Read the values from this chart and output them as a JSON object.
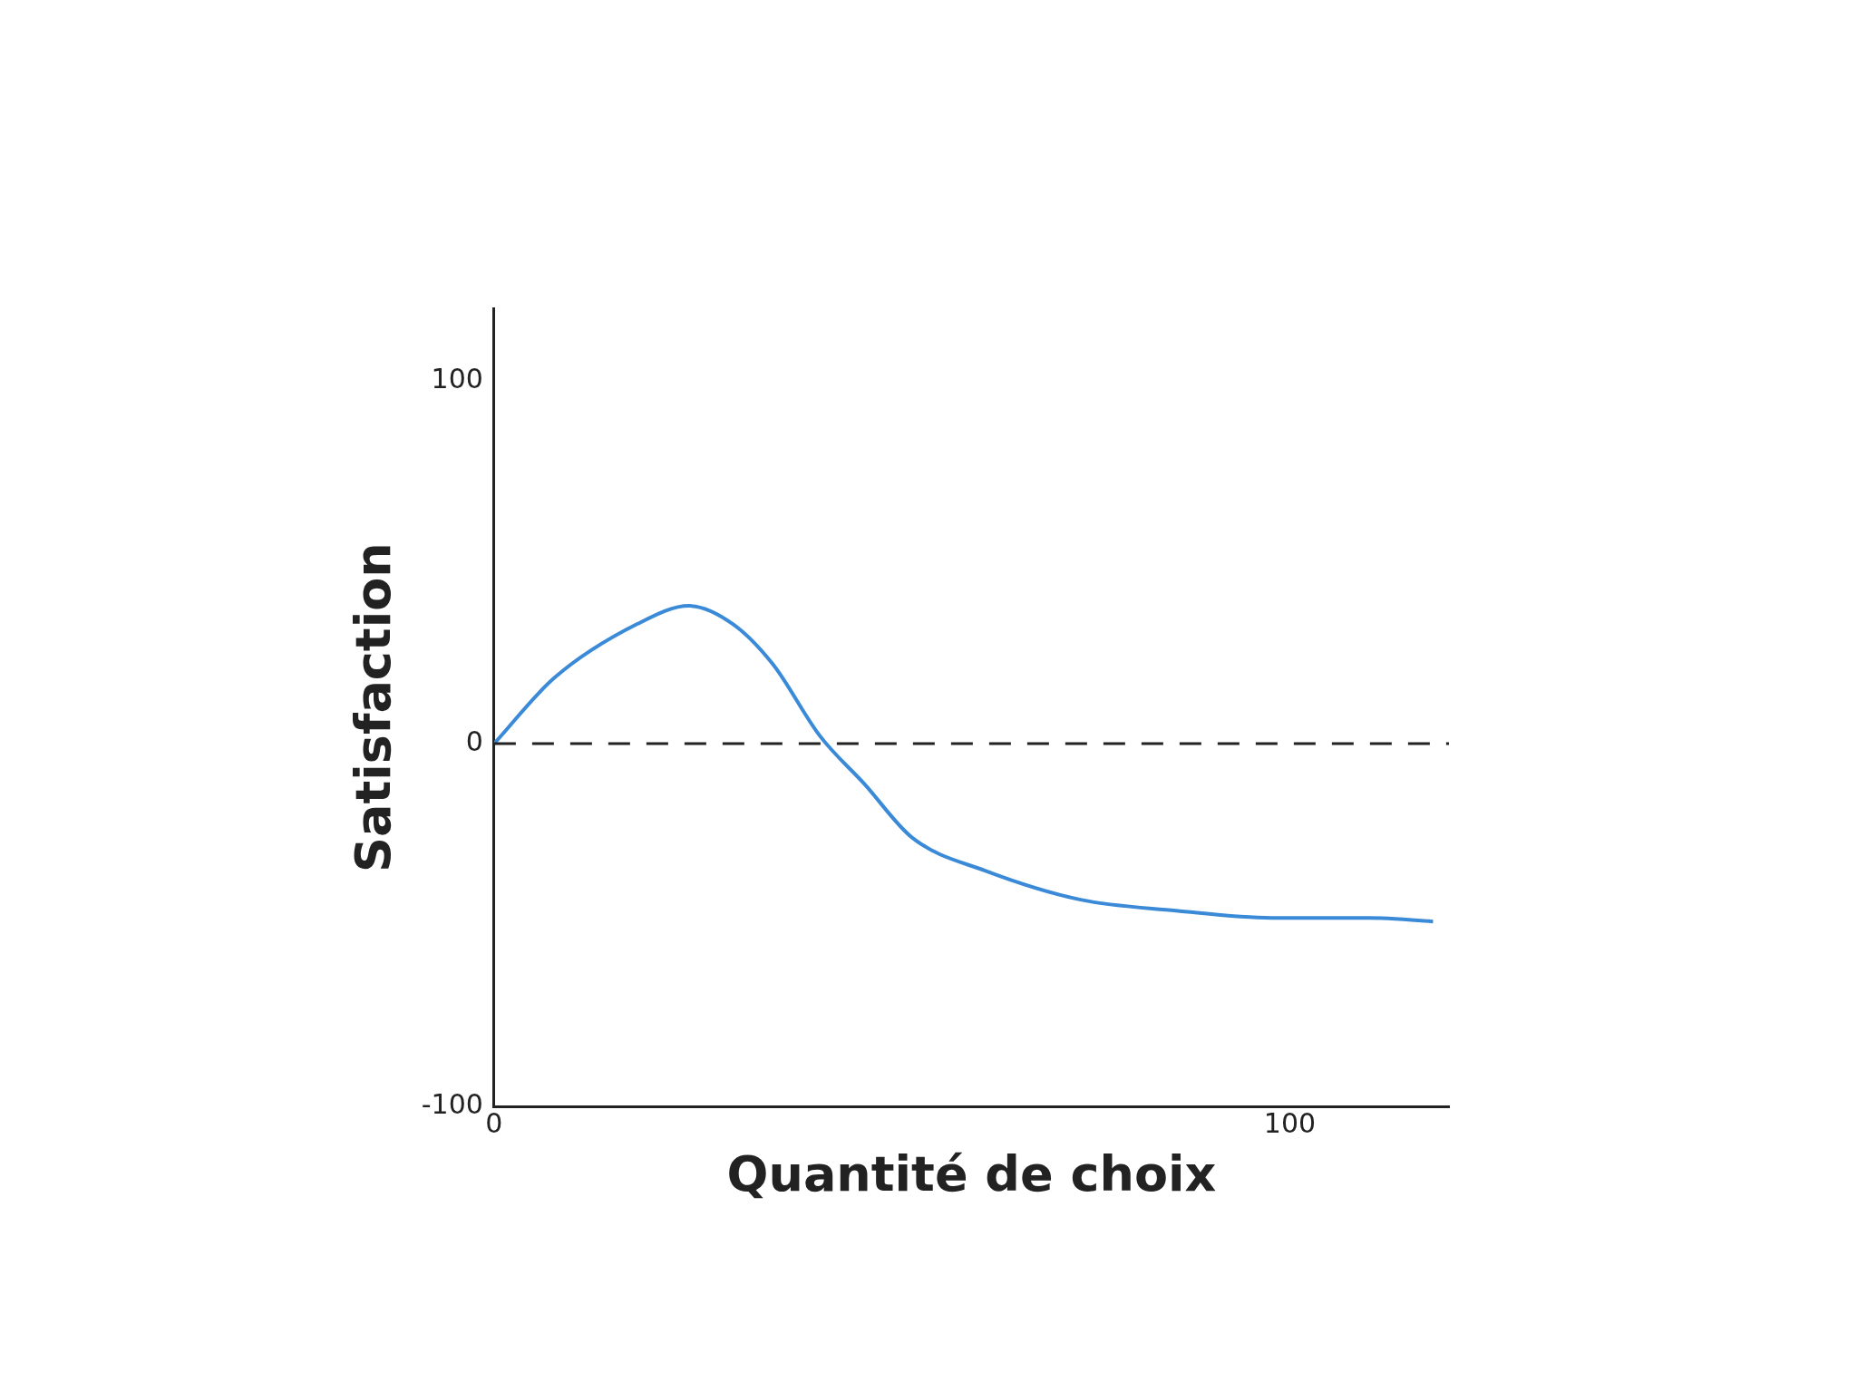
{
  "chart_data": {
    "type": "line",
    "xlabel": "Quantité de choix",
    "ylabel": "Satisfaction",
    "x": [
      0,
      7.5,
      18,
      24.5,
      30,
      35,
      41,
      46.5,
      52.6,
      61.7,
      73.7,
      85.7,
      97.7,
      110,
      118
    ],
    "series": [
      {
        "color": "#3a8ad8",
        "values": [
          0,
          18,
          33,
          38,
          33,
          22,
          2,
          -11,
          -26,
          -35,
          -43,
          -46,
          -48,
          -48,
          -49
        ]
      }
    ],
    "xlim": [
      0,
      120
    ],
    "ylim": [
      -100,
      120
    ],
    "xticks": [
      0,
      100
    ],
    "yticks": [
      -100,
      0,
      100
    ],
    "grid": false,
    "legend": false,
    "ref_lines": [
      {
        "axis": "y",
        "value": 0,
        "color": "#222222",
        "line_style": "dashed"
      }
    ]
  }
}
